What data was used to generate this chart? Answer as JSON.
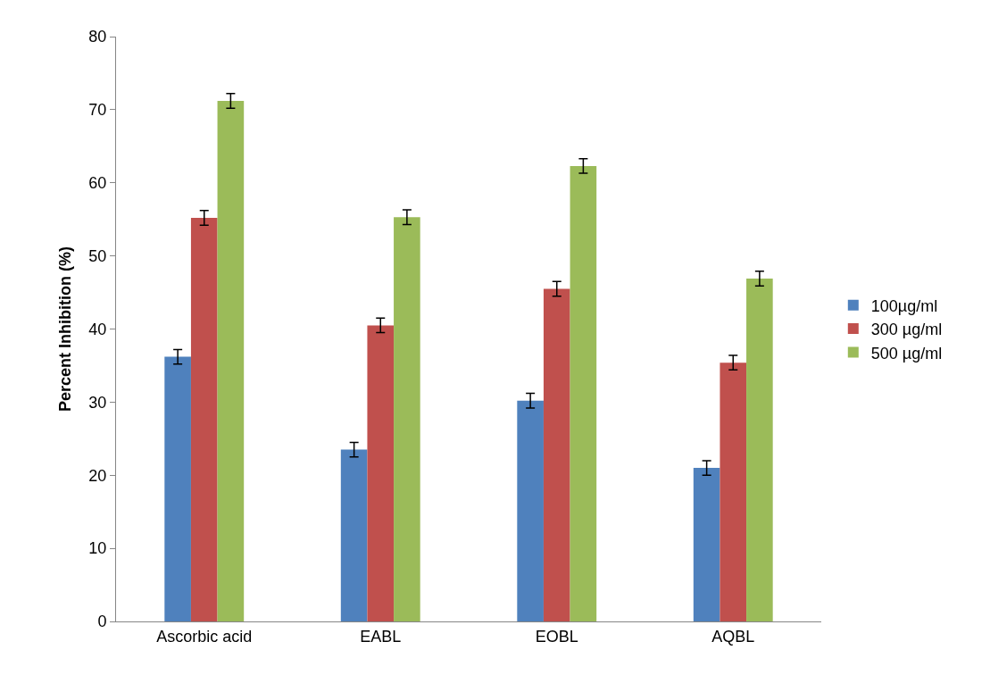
{
  "chart_data": {
    "type": "bar",
    "ylabel": "Percent Inhibition (%)",
    "categories": [
      "Ascorbic acid",
      "EABL",
      "EOBL",
      "AQBL"
    ],
    "series": [
      {
        "name": "100µg/ml",
        "color": "#4f81bd",
        "values": [
          36.2,
          23.5,
          30.2,
          21.0
        ],
        "errors": [
          1,
          1,
          1,
          1
        ]
      },
      {
        "name": "300 µg/ml",
        "color": "#c0504d",
        "values": [
          55.2,
          40.5,
          45.5,
          35.4
        ],
        "errors": [
          1,
          1,
          1,
          1
        ]
      },
      {
        "name": "500 µg/ml",
        "color": "#9bbb59",
        "values": [
          71.2,
          55.3,
          62.3,
          46.9
        ],
        "errors": [
          1,
          1,
          1,
          1
        ]
      }
    ],
    "ylim": [
      0,
      80
    ],
    "yticks": [
      0,
      10,
      20,
      30,
      40,
      50,
      60,
      70,
      80
    ],
    "legend": "right"
  }
}
